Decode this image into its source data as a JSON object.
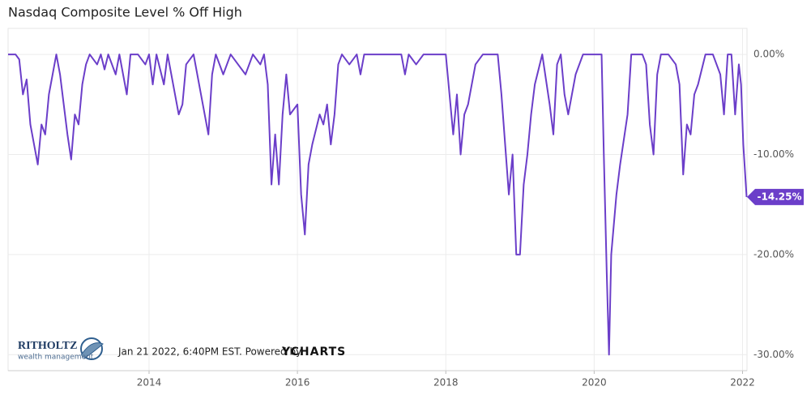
{
  "chart_data": {
    "type": "line",
    "title": "Nasdaq Composite Level % Off High",
    "footer": "Jan 21 2022, 6:40PM EST. Powered by",
    "footer_brand": "YCHARTS",
    "logo_name": "RITHOLTZ",
    "logo_sub": "wealth management",
    "x": [
      2012.1,
      2012.2,
      2012.25,
      2012.3,
      2012.35,
      2012.4,
      2012.45,
      2012.5,
      2012.55,
      2012.6,
      2012.65,
      2012.7,
      2012.75,
      2012.8,
      2012.85,
      2012.9,
      2012.95,
      2013.0,
      2013.05,
      2013.1,
      2013.15,
      2013.2,
      2013.3,
      2013.35,
      2013.4,
      2013.45,
      2013.55,
      2013.6,
      2013.7,
      2013.75,
      2013.85,
      2013.95,
      2014.0,
      2014.05,
      2014.1,
      2014.2,
      2014.25,
      2014.35,
      2014.4,
      2014.45,
      2014.5,
      2014.6,
      2014.7,
      2014.8,
      2014.85,
      2014.9,
      2015.0,
      2015.1,
      2015.2,
      2015.3,
      2015.4,
      2015.5,
      2015.55,
      2015.6,
      2015.65,
      2015.7,
      2015.75,
      2015.8,
      2015.85,
      2015.9,
      2016.0,
      2016.05,
      2016.1,
      2016.15,
      2016.2,
      2016.3,
      2016.35,
      2016.4,
      2016.45,
      2016.5,
      2016.55,
      2016.6,
      2016.7,
      2016.8,
      2016.85,
      2016.9,
      2017.0,
      2017.4,
      2017.45,
      2017.5,
      2017.6,
      2017.7,
      2018.0,
      2018.05,
      2018.1,
      2018.15,
      2018.2,
      2018.25,
      2018.3,
      2018.4,
      2018.5,
      2018.7,
      2018.75,
      2018.8,
      2018.85,
      2018.9,
      2018.95,
      2019.0,
      2019.05,
      2019.1,
      2019.15,
      2019.2,
      2019.3,
      2019.4,
      2019.45,
      2019.5,
      2019.55,
      2019.6,
      2019.65,
      2019.75,
      2019.85,
      2020.0,
      2020.1,
      2020.13,
      2020.17,
      2020.2,
      2020.23,
      2020.3,
      2020.35,
      2020.45,
      2020.5,
      2020.65,
      2020.7,
      2020.75,
      2020.8,
      2020.85,
      2020.9,
      2021.0,
      2021.1,
      2021.15,
      2021.2,
      2021.25,
      2021.3,
      2021.35,
      2021.4,
      2021.5,
      2021.6,
      2021.7,
      2021.75,
      2021.8,
      2021.85,
      2021.9,
      2021.95,
      2021.98,
      2022.01,
      2022.055
    ],
    "series": [
      {
        "name": "Nasdaq Composite Level % Off High",
        "color": "#6b3ec9",
        "values": [
          0,
          0,
          -0.5,
          -4,
          -2.5,
          -7,
          -9,
          -11,
          -7,
          -8,
          -4,
          -2,
          0,
          -2,
          -5,
          -8,
          -10.5,
          -6,
          -7,
          -3,
          -1,
          0,
          -1,
          0,
          -1.5,
          0,
          -2,
          0,
          -4,
          0,
          0,
          -1,
          0,
          -3,
          0,
          -3,
          0,
          -4,
          -6,
          -5,
          -1,
          0,
          -4,
          -8,
          -2,
          0,
          -2,
          0,
          -1,
          -2,
          0,
          -1,
          0,
          -3,
          -13,
          -8,
          -13,
          -6,
          -2,
          -6,
          -5,
          -14,
          -18,
          -11,
          -9,
          -6,
          -7,
          -5,
          -9,
          -6,
          -1,
          0,
          -1,
          0,
          -2,
          0,
          0,
          0,
          -2,
          0,
          -1,
          0,
          0,
          -4,
          -8,
          -4,
          -10,
          -6,
          -5,
          -1,
          0,
          0,
          -4,
          -9,
          -14,
          -10,
          -20,
          -20,
          -13,
          -10,
          -6,
          -3,
          0,
          -5,
          -8,
          -1,
          0,
          -4,
          -6,
          -2,
          0,
          0,
          0,
          -10,
          -22,
          -30,
          -20,
          -14,
          -11,
          -6,
          0,
          0,
          -1,
          -7,
          -10,
          -2,
          0,
          0,
          -1,
          -3,
          -12,
          -7,
          -8,
          -4,
          -3,
          0,
          0,
          -2,
          -6,
          0,
          0,
          -6,
          -1,
          -3,
          -9,
          -14.25
        ],
        "value_labels": [
          null,
          null,
          null,
          null,
          null,
          null,
          null,
          null,
          null,
          null,
          null,
          null,
          null,
          null,
          null,
          null,
          null,
          null,
          null,
          null,
          null,
          null,
          null,
          null,
          null,
          null,
          null,
          null,
          null,
          null,
          null,
          null,
          null,
          null,
          null,
          null,
          null,
          null,
          null,
          null,
          null,
          null,
          null,
          null,
          null,
          null,
          null,
          null,
          null,
          null,
          null,
          null,
          null,
          null,
          null,
          null,
          null,
          null,
          null,
          null,
          null,
          null,
          null,
          null,
          null,
          null,
          null,
          null,
          null,
          null,
          null,
          null,
          null,
          null,
          null,
          null,
          null,
          null,
          null,
          null,
          null,
          null,
          null,
          null,
          null,
          null,
          null,
          null,
          null,
          null,
          null,
          null,
          null,
          null,
          null,
          null,
          null,
          null,
          null,
          null,
          null,
          null,
          null,
          null,
          null,
          null,
          null,
          null,
          null,
          null,
          null,
          null,
          null,
          null,
          null,
          null,
          null,
          null,
          null,
          null,
          null,
          null,
          null,
          null,
          null,
          null,
          null,
          null,
          null,
          null,
          null,
          null,
          null,
          null,
          null,
          null,
          null,
          null,
          null,
          null,
          null,
          null,
          null,
          null,
          null,
          "-14.25%"
        ]
      }
    ],
    "xlim": [
      2012.1,
      2022.06
    ],
    "xticks": [
      2014,
      2016,
      2018,
      2020,
      2022
    ],
    "ylim": [
      -31.6,
      2.6
    ],
    "yticks": [
      {
        "value": 0,
        "label": "0.00%"
      },
      {
        "value": -10,
        "label": "-10.00%"
      },
      {
        "value": -20,
        "label": "-20.00%"
      },
      {
        "value": -30,
        "label": "-30.00%"
      }
    ],
    "grid": true
  }
}
